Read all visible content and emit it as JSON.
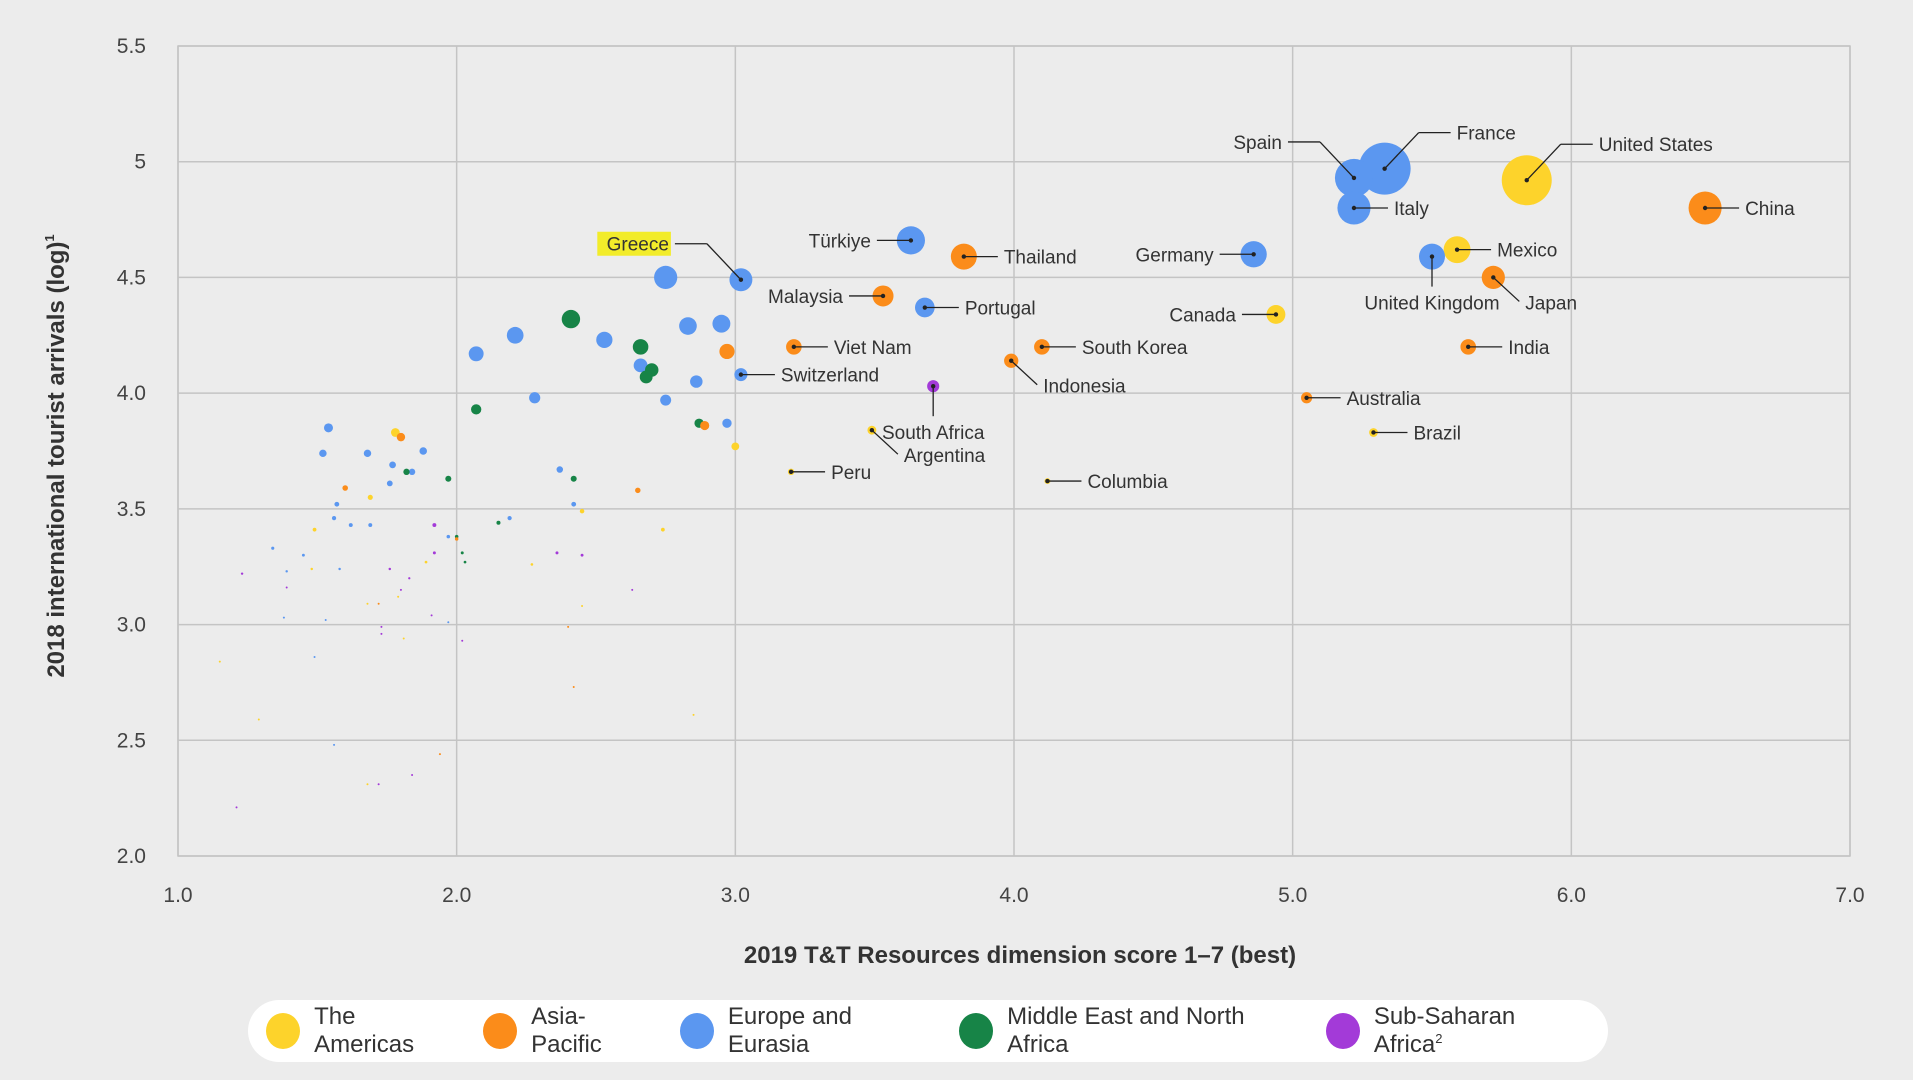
{
  "colors": {
    "The Americas": "#fdd32b",
    "Asia-Pacific": "#fb8c1a",
    "Europe and Eurasia": "#5b97f0",
    "Middle East and North Africa": "#178447",
    "Sub-Saharan Africa": "#a33ad8"
  },
  "legend": [
    {
      "label": "The Americas",
      "region": "The Americas"
    },
    {
      "label": "Asia-Pacific",
      "region": "Asia-Pacific"
    },
    {
      "label": "Europe and Eurasia",
      "region": "Europe and Eurasia"
    },
    {
      "label": "Middle East and North Africa",
      "region": "Middle East and North Africa"
    },
    {
      "label": "Sub-Saharan Africa",
      "sup": "2",
      "region": "Sub-Saharan Africa"
    }
  ],
  "chart_data": {
    "type": "scatter",
    "xlabel": "2019 T&T Resources dimension score 1–7 (best)",
    "ylabel": "2018 international tourist arrivals (log)",
    "ylabel_sup": "1",
    "xlim": [
      1.0,
      7.0
    ],
    "ylim": [
      2.0,
      5.5
    ],
    "xticks": [
      "1.0",
      "2.0",
      "3.0",
      "4.0",
      "5.0",
      "6.0",
      "7.0"
    ],
    "yticks": [
      "2.0",
      "2.5",
      "3.0",
      "3.5",
      "4.0",
      "4.5",
      "5",
      "5.5"
    ],
    "ytick_values": [
      2.0,
      2.5,
      3.0,
      3.5,
      4.0,
      4.5,
      5.0,
      5.5
    ],
    "grid": true,
    "legend_position": "bottom",
    "labeled_points": [
      {
        "label": "United States",
        "x": 5.84,
        "y": 4.92,
        "region": "The Americas",
        "highlight": false
      },
      {
        "label": "Mexico",
        "x": 5.59,
        "y": 4.62,
        "region": "The Americas",
        "highlight": false
      },
      {
        "label": "Canada",
        "x": 4.94,
        "y": 4.34,
        "region": "The Americas",
        "highlight": false
      },
      {
        "label": "Brazil",
        "x": 5.29,
        "y": 3.83,
        "region": "The Americas",
        "highlight": false
      },
      {
        "label": "Argentina",
        "x": 3.49,
        "y": 3.84,
        "region": "The Americas",
        "highlight": false
      },
      {
        "label": "Peru",
        "x": 3.2,
        "y": 3.66,
        "region": "The Americas",
        "highlight": false
      },
      {
        "label": "Columbia",
        "x": 4.12,
        "y": 3.62,
        "region": "The Americas",
        "highlight": false
      },
      {
        "label": "China",
        "x": 6.48,
        "y": 4.8,
        "region": "Asia-Pacific",
        "highlight": false
      },
      {
        "label": "Japan",
        "x": 5.72,
        "y": 4.5,
        "region": "Asia-Pacific",
        "highlight": false
      },
      {
        "label": "India",
        "x": 5.63,
        "y": 4.2,
        "region": "Asia-Pacific",
        "highlight": false
      },
      {
        "label": "Australia",
        "x": 5.05,
        "y": 3.98,
        "region": "Asia-Pacific",
        "highlight": false
      },
      {
        "label": "Thailand",
        "x": 3.82,
        "y": 4.59,
        "region": "Asia-Pacific",
        "highlight": false
      },
      {
        "label": "Malaysia",
        "x": 3.53,
        "y": 4.42,
        "region": "Asia-Pacific",
        "highlight": false
      },
      {
        "label": "Viet Nam",
        "x": 3.21,
        "y": 4.2,
        "region": "Asia-Pacific",
        "highlight": false
      },
      {
        "label": "South Korea",
        "x": 4.1,
        "y": 4.2,
        "region": "Asia-Pacific",
        "highlight": false
      },
      {
        "label": "Indonesia",
        "x": 3.99,
        "y": 4.14,
        "region": "Asia-Pacific",
        "highlight": false
      },
      {
        "label": "France",
        "x": 5.33,
        "y": 4.97,
        "region": "Europe and Eurasia",
        "highlight": false
      },
      {
        "label": "Spain",
        "x": 5.22,
        "y": 4.93,
        "region": "Europe and Eurasia",
        "highlight": false
      },
      {
        "label": "Italy",
        "x": 5.22,
        "y": 4.8,
        "region": "Europe and Eurasia",
        "highlight": false
      },
      {
        "label": "Germany",
        "x": 4.86,
        "y": 4.6,
        "region": "Europe and Eurasia",
        "highlight": false
      },
      {
        "label": "United Kingdom",
        "x": 5.5,
        "y": 4.59,
        "region": "Europe and Eurasia",
        "highlight": false
      },
      {
        "label": "Türkiye",
        "x": 3.63,
        "y": 4.66,
        "region": "Europe and Eurasia",
        "highlight": false
      },
      {
        "label": "Greece",
        "x": 3.02,
        "y": 4.49,
        "region": "Europe and Eurasia",
        "highlight": true
      },
      {
        "label": "Portugal",
        "x": 3.68,
        "y": 4.37,
        "region": "Europe and Eurasia",
        "highlight": false
      },
      {
        "label": "Switzerland",
        "x": 3.02,
        "y": 4.08,
        "region": "Europe and Eurasia",
        "highlight": false
      },
      {
        "label": "South Africa",
        "x": 3.71,
        "y": 4.03,
        "region": "Sub-Saharan Africa",
        "highlight": false
      }
    ],
    "unlabeled_points": [
      {
        "x": 2.75,
        "y": 4.5,
        "region": "Europe and Eurasia"
      },
      {
        "x": 2.53,
        "y": 4.23,
        "region": "Europe and Eurasia"
      },
      {
        "x": 2.21,
        "y": 4.25,
        "region": "Europe and Eurasia"
      },
      {
        "x": 2.07,
        "y": 4.17,
        "region": "Europe and Eurasia"
      },
      {
        "x": 2.83,
        "y": 4.29,
        "region": "Europe and Eurasia"
      },
      {
        "x": 2.95,
        "y": 4.3,
        "region": "Europe and Eurasia"
      },
      {
        "x": 2.66,
        "y": 4.12,
        "region": "Europe and Eurasia"
      },
      {
        "x": 2.86,
        "y": 4.05,
        "region": "Europe and Eurasia"
      },
      {
        "x": 2.75,
        "y": 3.97,
        "region": "Europe and Eurasia"
      },
      {
        "x": 2.28,
        "y": 3.98,
        "region": "Europe and Eurasia"
      },
      {
        "x": 2.97,
        "y": 3.87,
        "region": "Europe and Eurasia"
      },
      {
        "x": 1.54,
        "y": 3.85,
        "region": "Europe and Eurasia"
      },
      {
        "x": 1.52,
        "y": 3.74,
        "region": "Europe and Eurasia"
      },
      {
        "x": 1.68,
        "y": 3.74,
        "region": "Europe and Eurasia"
      },
      {
        "x": 1.77,
        "y": 3.69,
        "region": "Europe and Eurasia"
      },
      {
        "x": 1.84,
        "y": 3.66,
        "region": "Europe and Eurasia"
      },
      {
        "x": 1.88,
        "y": 3.75,
        "region": "Europe and Eurasia"
      },
      {
        "x": 1.76,
        "y": 3.61,
        "region": "Europe and Eurasia"
      },
      {
        "x": 2.37,
        "y": 3.67,
        "region": "Europe and Eurasia"
      },
      {
        "x": 2.42,
        "y": 3.52,
        "region": "Europe and Eurasia"
      },
      {
        "x": 1.57,
        "y": 3.52,
        "region": "Europe and Eurasia"
      },
      {
        "x": 1.56,
        "y": 3.46,
        "region": "Europe and Eurasia"
      },
      {
        "x": 1.62,
        "y": 3.43,
        "region": "Europe and Eurasia"
      },
      {
        "x": 1.69,
        "y": 3.43,
        "region": "Europe and Eurasia"
      },
      {
        "x": 2.19,
        "y": 3.46,
        "region": "Europe and Eurasia"
      },
      {
        "x": 1.97,
        "y": 3.38,
        "region": "Europe and Eurasia"
      },
      {
        "x": 1.34,
        "y": 3.33,
        "region": "Europe and Eurasia"
      },
      {
        "x": 1.45,
        "y": 3.3,
        "region": "Europe and Eurasia"
      },
      {
        "x": 1.39,
        "y": 3.23,
        "region": "Europe and Eurasia"
      },
      {
        "x": 1.58,
        "y": 3.24,
        "region": "Europe and Eurasia"
      },
      {
        "x": 1.38,
        "y": 3.03,
        "region": "Europe and Eurasia"
      },
      {
        "x": 1.53,
        "y": 3.02,
        "region": "Europe and Eurasia"
      },
      {
        "x": 1.97,
        "y": 3.01,
        "region": "Europe and Eurasia"
      },
      {
        "x": 1.49,
        "y": 2.86,
        "region": "Europe and Eurasia"
      },
      {
        "x": 1.56,
        "y": 2.48,
        "region": "Europe and Eurasia"
      },
      {
        "x": 2.41,
        "y": 4.32,
        "region": "Middle East and North Africa"
      },
      {
        "x": 2.66,
        "y": 4.2,
        "region": "Middle East and North Africa"
      },
      {
        "x": 2.7,
        "y": 4.1,
        "region": "Middle East and North Africa"
      },
      {
        "x": 2.68,
        "y": 4.07,
        "region": "Middle East and North Africa"
      },
      {
        "x": 2.07,
        "y": 3.93,
        "region": "Middle East and North Africa"
      },
      {
        "x": 2.87,
        "y": 3.87,
        "region": "Middle East and North Africa"
      },
      {
        "x": 1.82,
        "y": 3.66,
        "region": "Middle East and North Africa"
      },
      {
        "x": 1.97,
        "y": 3.63,
        "region": "Middle East and North Africa"
      },
      {
        "x": 2.42,
        "y": 3.63,
        "region": "Middle East and North Africa"
      },
      {
        "x": 2.15,
        "y": 3.44,
        "region": "Middle East and North Africa"
      },
      {
        "x": 2.0,
        "y": 3.38,
        "region": "Middle East and North Africa"
      },
      {
        "x": 2.02,
        "y": 3.31,
        "region": "Middle East and North Africa"
      },
      {
        "x": 2.03,
        "y": 3.27,
        "region": "Middle East and North Africa"
      },
      {
        "x": 2.97,
        "y": 4.18,
        "region": "Asia-Pacific"
      },
      {
        "x": 2.89,
        "y": 3.86,
        "region": "Asia-Pacific"
      },
      {
        "x": 1.8,
        "y": 3.81,
        "region": "Asia-Pacific"
      },
      {
        "x": 1.6,
        "y": 3.59,
        "region": "Asia-Pacific"
      },
      {
        "x": 2.65,
        "y": 3.58,
        "region": "Asia-Pacific"
      },
      {
        "x": 2.0,
        "y": 3.37,
        "region": "Asia-Pacific"
      },
      {
        "x": 1.72,
        "y": 3.09,
        "region": "Asia-Pacific"
      },
      {
        "x": 2.4,
        "y": 2.99,
        "region": "Asia-Pacific"
      },
      {
        "x": 2.42,
        "y": 2.73,
        "region": "Asia-Pacific"
      },
      {
        "x": 1.94,
        "y": 2.44,
        "region": "Asia-Pacific"
      },
      {
        "x": 1.78,
        "y": 3.83,
        "region": "The Americas"
      },
      {
        "x": 3.0,
        "y": 3.77,
        "region": "The Americas"
      },
      {
        "x": 1.69,
        "y": 3.55,
        "region": "The Americas"
      },
      {
        "x": 2.45,
        "y": 3.49,
        "region": "The Americas"
      },
      {
        "x": 1.49,
        "y": 3.41,
        "region": "The Americas"
      },
      {
        "x": 2.74,
        "y": 3.41,
        "region": "The Americas"
      },
      {
        "x": 1.89,
        "y": 3.27,
        "region": "The Americas"
      },
      {
        "x": 2.27,
        "y": 3.26,
        "region": "The Americas"
      },
      {
        "x": 1.48,
        "y": 3.24,
        "region": "The Americas"
      },
      {
        "x": 1.79,
        "y": 3.12,
        "region": "The Americas"
      },
      {
        "x": 1.68,
        "y": 3.09,
        "region": "The Americas"
      },
      {
        "x": 2.45,
        "y": 3.08,
        "region": "The Americas"
      },
      {
        "x": 1.81,
        "y": 2.94,
        "region": "The Americas"
      },
      {
        "x": 1.15,
        "y": 2.84,
        "region": "The Americas"
      },
      {
        "x": 1.29,
        "y": 2.59,
        "region": "The Americas"
      },
      {
        "x": 2.85,
        "y": 2.61,
        "region": "The Americas"
      },
      {
        "x": 1.68,
        "y": 2.31,
        "region": "The Americas"
      },
      {
        "x": 1.92,
        "y": 3.43,
        "region": "Sub-Saharan Africa"
      },
      {
        "x": 1.23,
        "y": 3.22,
        "region": "Sub-Saharan Africa"
      },
      {
        "x": 1.39,
        "y": 3.16,
        "region": "Sub-Saharan Africa"
      },
      {
        "x": 1.76,
        "y": 3.24,
        "region": "Sub-Saharan Africa"
      },
      {
        "x": 1.83,
        "y": 3.2,
        "region": "Sub-Saharan Africa"
      },
      {
        "x": 1.92,
        "y": 3.31,
        "region": "Sub-Saharan Africa"
      },
      {
        "x": 2.36,
        "y": 3.31,
        "region": "Sub-Saharan Africa"
      },
      {
        "x": 2.45,
        "y": 3.3,
        "region": "Sub-Saharan Africa"
      },
      {
        "x": 1.8,
        "y": 3.15,
        "region": "Sub-Saharan Africa"
      },
      {
        "x": 2.63,
        "y": 3.15,
        "region": "Sub-Saharan Africa"
      },
      {
        "x": 1.91,
        "y": 3.04,
        "region": "Sub-Saharan Africa"
      },
      {
        "x": 1.73,
        "y": 2.99,
        "region": "Sub-Saharan Africa"
      },
      {
        "x": 1.73,
        "y": 2.96,
        "region": "Sub-Saharan Africa"
      },
      {
        "x": 2.02,
        "y": 2.93,
        "region": "Sub-Saharan Africa"
      },
      {
        "x": 1.21,
        "y": 2.21,
        "region": "Sub-Saharan Africa"
      },
      {
        "x": 1.84,
        "y": 2.35,
        "region": "Sub-Saharan Africa"
      },
      {
        "x": 1.72,
        "y": 2.31,
        "region": "Sub-Saharan Africa"
      }
    ]
  }
}
